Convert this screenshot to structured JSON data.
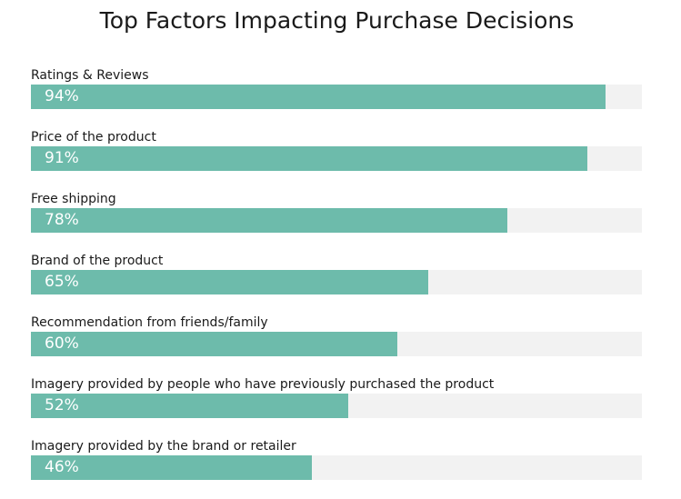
{
  "chart_data": {
    "type": "bar",
    "orientation": "horizontal",
    "title": "Top Factors Impacting Purchase Decisions",
    "xlabel": "",
    "ylabel": "",
    "xlim": [
      0,
      100
    ],
    "unit": "%",
    "grid": false,
    "legend": "none",
    "categories": [
      "Ratings & Reviews",
      "Price of the product",
      "Free shipping",
      "Brand of the product",
      "Recommendation from friends/family",
      "Imagery provided by people who have previously purchased the product",
      "Imagery provided by the brand or retailer"
    ],
    "values": [
      94,
      91,
      78,
      65,
      60,
      52,
      46
    ],
    "value_labels": [
      "94%",
      "91%",
      "78%",
      "65%",
      "60%",
      "52%",
      "46%"
    ]
  },
  "colors": {
    "bar": "#6dbbab",
    "track": "#f2f2f2",
    "value_text": "#ffffff",
    "label_text": "#1a1a1a"
  }
}
